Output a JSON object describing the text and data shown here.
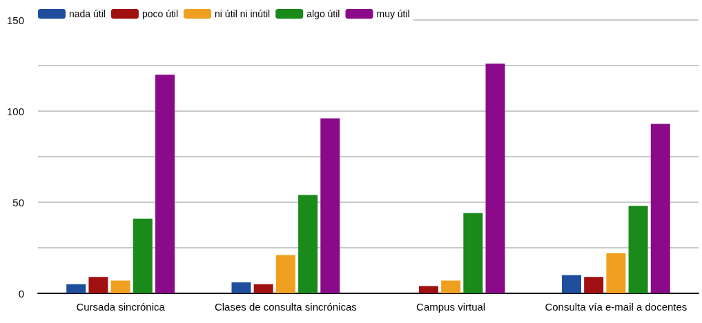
{
  "chart_data": {
    "type": "bar",
    "categories": [
      "Cursada sincrónica",
      "Clases de consulta sincrónicas",
      "Campus virtual",
      "Consulta vía e-mail a docentes"
    ],
    "series": [
      {
        "name": "nada útil",
        "color": "#1f4e9c",
        "values": [
          5,
          6,
          0,
          10
        ]
      },
      {
        "name": "poco útil",
        "color": "#a01010",
        "values": [
          9,
          5,
          4,
          9
        ]
      },
      {
        "name": "ni útil ni inútil",
        "color": "#f0a020",
        "values": [
          7,
          21,
          7,
          22
        ]
      },
      {
        "name": "algo útil",
        "color": "#1a8a1a",
        "values": [
          41,
          54,
          44,
          48
        ]
      },
      {
        "name": "muy útil",
        "color": "#8a0a8a",
        "values": [
          120,
          96,
          126,
          93
        ]
      }
    ],
    "ylim": [
      0,
      150
    ],
    "yticks": [
      0,
      {
        "value": 25,
        "label": null
      },
      50,
      {
        "value": 75,
        "label": null
      },
      100,
      {
        "value": 125,
        "label": null
      },
      150
    ],
    "grid": "y",
    "legend": "top left"
  }
}
